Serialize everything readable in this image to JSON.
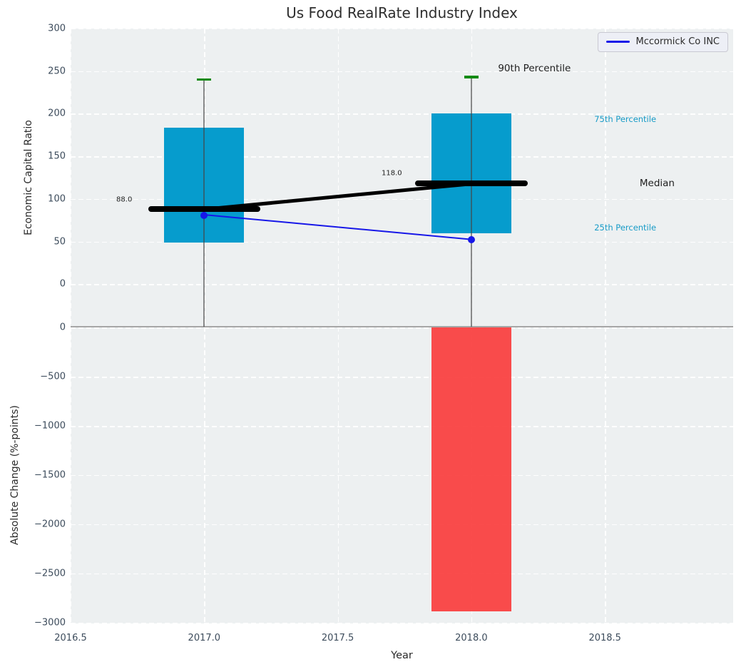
{
  "title": "Us Food RealRate Industry Index",
  "legend": {
    "label": "Mccormick Co INC"
  },
  "colors": {
    "plot_background": "#edf0f1",
    "grid": "#ffffff",
    "box": "#069ccd",
    "negative_bar": "#fa3d3d",
    "median_line": "#000000",
    "trend_line": "#000000",
    "company_line": "#1717e8",
    "whisker_cap": "#138a13",
    "whisker_line": "rgba(70,70,70,0.62)",
    "percentile_label": "#179bc7",
    "tick_text": "#3d4c5c"
  },
  "chart_data": [
    {
      "type": "box",
      "subplot": "top",
      "ylabel": "Economic Capital Ratio",
      "ylim": [
        -50,
        300
      ],
      "yticks": [
        300,
        250,
        200,
        150,
        100,
        50,
        0
      ],
      "grid": true,
      "legend_position": "upper right",
      "boxes": [
        {
          "year": 2017,
          "p25": 49,
          "median": 88,
          "p75": 184,
          "p90": 240,
          "median_label": "88.0"
        },
        {
          "year": 2018,
          "p25": 60,
          "median": 118,
          "p75": 200,
          "p90": 243,
          "median_label": "118.0"
        }
      ],
      "company_series": {
        "name": "Mccormick Co INC",
        "points": [
          {
            "year": 2017,
            "value": 81
          },
          {
            "year": 2018,
            "value": 52
          }
        ]
      },
      "annotations": [
        {
          "id": "p90-label",
          "text": "90th Percentile",
          "year": 2018.1,
          "value": 253,
          "size": 13.5,
          "color": "#1f1f1f"
        },
        {
          "id": "p75-label",
          "text": "75th Percentile",
          "year": 2018.46,
          "value": 194,
          "size": 11.5,
          "color": "#179bc7"
        },
        {
          "id": "median-label",
          "text": "Median",
          "year": 2018.63,
          "value": 118,
          "size": 13.5,
          "color": "#1f1f1f"
        },
        {
          "id": "p25-label",
          "text": "25th Percentile",
          "year": 2018.46,
          "value": 66,
          "size": 11.5,
          "color": "#179bc7"
        },
        {
          "id": "median-value-2017",
          "text": "88.0",
          "year": 2016.671,
          "value": 99,
          "size": 10,
          "color": "#1f1f1f"
        },
        {
          "id": "median-value-2018",
          "text": "118.0",
          "year": 2017.664,
          "value": 130,
          "size": 10,
          "color": "#1f1f1f"
        }
      ]
    },
    {
      "type": "bar",
      "subplot": "bottom",
      "ylabel": "Absolute Change (%-points)",
      "xlabel": "Year",
      "ylim": [
        -3010,
        10
      ],
      "yticks": [
        0,
        -500,
        -1000,
        -1500,
        -2000,
        -2500,
        -3000
      ],
      "xticks": [
        2016.5,
        2017.0,
        2017.5,
        2018.0,
        2018.5
      ],
      "xlim": [
        2016.5,
        2018.98
      ],
      "bars": [
        {
          "year": 2018,
          "value": -2890
        }
      ]
    }
  ]
}
